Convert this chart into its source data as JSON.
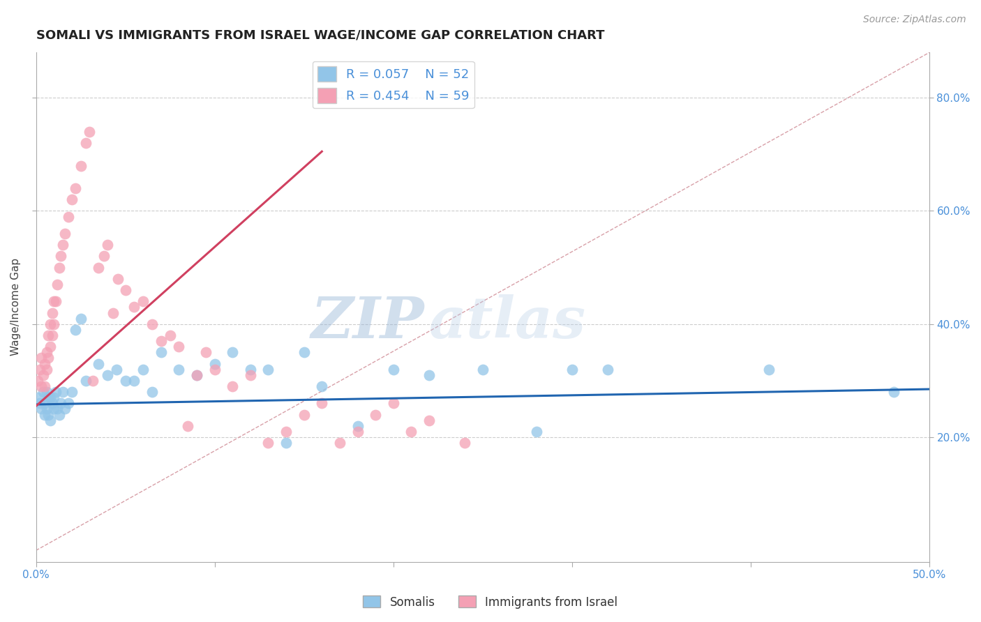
{
  "title": "SOMALI VS IMMIGRANTS FROM ISRAEL WAGE/INCOME GAP CORRELATION CHART",
  "source": "Source: ZipAtlas.com",
  "ylabel": "Wage/Income Gap",
  "xlim": [
    0.0,
    0.5
  ],
  "ylim": [
    -0.02,
    0.88
  ],
  "xticks": [
    0.0,
    0.1,
    0.2,
    0.3,
    0.4,
    0.5
  ],
  "xtick_labels": [
    "0.0%",
    "",
    "",
    "",
    "",
    "50.0%"
  ],
  "yticks": [
    0.2,
    0.4,
    0.6,
    0.8
  ],
  "ytick_labels": [
    "20.0%",
    "40.0%",
    "60.0%",
    "80.0%"
  ],
  "somali_R": 0.057,
  "somali_N": 52,
  "israel_R": 0.454,
  "israel_N": 59,
  "somali_color": "#92C5E8",
  "israel_color": "#F4A0B4",
  "somali_line_color": "#2065B0",
  "israel_line_color": "#D04060",
  "diagonal_color": "#D8A0A8",
  "watermark_zip": "ZIP",
  "watermark_atlas": "atlas",
  "somali_x": [
    0.001,
    0.002,
    0.003,
    0.004,
    0.005,
    0.005,
    0.006,
    0.006,
    0.007,
    0.007,
    0.008,
    0.008,
    0.009,
    0.01,
    0.01,
    0.011,
    0.012,
    0.013,
    0.014,
    0.015,
    0.016,
    0.018,
    0.02,
    0.022,
    0.025,
    0.028,
    0.035,
    0.04,
    0.045,
    0.05,
    0.055,
    0.06,
    0.065,
    0.07,
    0.08,
    0.09,
    0.1,
    0.11,
    0.12,
    0.13,
    0.14,
    0.15,
    0.16,
    0.18,
    0.2,
    0.22,
    0.25,
    0.28,
    0.3,
    0.32,
    0.41,
    0.48
  ],
  "somali_y": [
    0.27,
    0.26,
    0.25,
    0.28,
    0.26,
    0.24,
    0.28,
    0.25,
    0.27,
    0.24,
    0.27,
    0.23,
    0.26,
    0.27,
    0.25,
    0.28,
    0.25,
    0.24,
    0.26,
    0.28,
    0.25,
    0.26,
    0.28,
    0.39,
    0.41,
    0.3,
    0.33,
    0.31,
    0.32,
    0.3,
    0.3,
    0.32,
    0.28,
    0.35,
    0.32,
    0.31,
    0.33,
    0.35,
    0.32,
    0.32,
    0.19,
    0.35,
    0.29,
    0.22,
    0.32,
    0.31,
    0.32,
    0.21,
    0.32,
    0.32,
    0.32,
    0.28
  ],
  "israel_x": [
    0.001,
    0.002,
    0.003,
    0.003,
    0.004,
    0.005,
    0.005,
    0.006,
    0.006,
    0.007,
    0.007,
    0.008,
    0.008,
    0.009,
    0.009,
    0.01,
    0.01,
    0.011,
    0.012,
    0.013,
    0.014,
    0.015,
    0.016,
    0.018,
    0.02,
    0.022,
    0.025,
    0.028,
    0.03,
    0.032,
    0.035,
    0.038,
    0.04,
    0.043,
    0.046,
    0.05,
    0.055,
    0.06,
    0.065,
    0.07,
    0.075,
    0.08,
    0.085,
    0.09,
    0.095,
    0.1,
    0.11,
    0.12,
    0.13,
    0.14,
    0.15,
    0.16,
    0.17,
    0.18,
    0.19,
    0.2,
    0.21,
    0.22,
    0.24
  ],
  "israel_y": [
    0.3,
    0.32,
    0.29,
    0.34,
    0.31,
    0.33,
    0.29,
    0.35,
    0.32,
    0.38,
    0.34,
    0.4,
    0.36,
    0.42,
    0.38,
    0.44,
    0.4,
    0.44,
    0.47,
    0.5,
    0.52,
    0.54,
    0.56,
    0.59,
    0.62,
    0.64,
    0.68,
    0.72,
    0.74,
    0.3,
    0.5,
    0.52,
    0.54,
    0.42,
    0.48,
    0.46,
    0.43,
    0.44,
    0.4,
    0.37,
    0.38,
    0.36,
    0.22,
    0.31,
    0.35,
    0.32,
    0.29,
    0.31,
    0.19,
    0.21,
    0.24,
    0.26,
    0.19,
    0.21,
    0.24,
    0.26,
    0.21,
    0.23,
    0.19
  ],
  "somali_line_x": [
    0.0,
    0.5
  ],
  "somali_line_y": [
    0.258,
    0.285
  ],
  "israel_line_x": [
    0.0,
    0.16
  ],
  "israel_line_y": [
    0.255,
    0.705
  ]
}
